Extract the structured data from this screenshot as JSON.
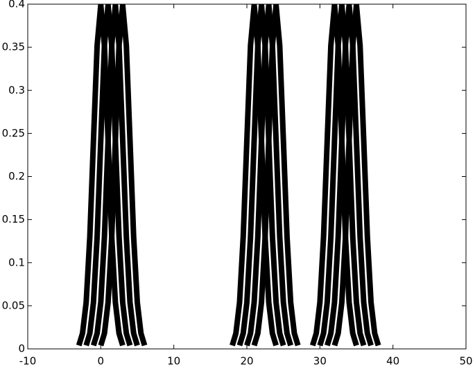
{
  "chart_data": {
    "type": "line",
    "xlim": [
      -10,
      50
    ],
    "xticks": [
      -10,
      0,
      10,
      20,
      30,
      40,
      50
    ],
    "ylim": [
      0,
      0.4
    ],
    "yticks": [
      0,
      0.05,
      0.1,
      0.15,
      0.2,
      0.25,
      0.3,
      0.35,
      0.4
    ],
    "series": [
      {
        "color": "#000000",
        "x": [
          -3,
          -2.5,
          -2,
          -1.5,
          -1,
          -0.5,
          0,
          0.5,
          1,
          1.5,
          2,
          2.5,
          3
        ],
        "values": [
          0.004,
          0.018,
          0.054,
          0.13,
          0.242,
          0.352,
          0.399,
          0.352,
          0.242,
          0.13,
          0.054,
          0.018,
          0.004
        ]
      },
      {
        "color": "#000000",
        "x": [
          -2,
          -1.5,
          -1,
          -0.5,
          0,
          0.5,
          1,
          1.5,
          2,
          2.5,
          3,
          3.5,
          4
        ],
        "values": [
          0.004,
          0.018,
          0.054,
          0.13,
          0.242,
          0.352,
          0.399,
          0.352,
          0.242,
          0.13,
          0.054,
          0.018,
          0.004
        ]
      },
      {
        "color": "#000000",
        "x": [
          -1,
          -0.5,
          0,
          0.5,
          1,
          1.5,
          2,
          2.5,
          3,
          3.5,
          4,
          4.5,
          5
        ],
        "values": [
          0.004,
          0.018,
          0.054,
          0.13,
          0.242,
          0.352,
          0.399,
          0.352,
          0.242,
          0.13,
          0.054,
          0.018,
          0.004
        ]
      },
      {
        "color": "#000000",
        "x": [
          0,
          0.5,
          1,
          1.5,
          2,
          2.5,
          3,
          3.5,
          4,
          4.5,
          5,
          5.5,
          6
        ],
        "values": [
          0.004,
          0.018,
          0.054,
          0.13,
          0.242,
          0.352,
          0.399,
          0.352,
          0.242,
          0.13,
          0.054,
          0.018,
          0.004
        ]
      },
      {
        "color": "#000000",
        "x": [
          18,
          18.5,
          19,
          19.5,
          20,
          20.5,
          21,
          21.5,
          22,
          22.5,
          23,
          23.5,
          24
        ],
        "values": [
          0.004,
          0.018,
          0.054,
          0.13,
          0.242,
          0.352,
          0.399,
          0.352,
          0.242,
          0.13,
          0.054,
          0.018,
          0.004
        ]
      },
      {
        "color": "#000000",
        "x": [
          19,
          19.5,
          20,
          20.5,
          21,
          21.5,
          22,
          22.5,
          23,
          23.5,
          24,
          24.5,
          25
        ],
        "values": [
          0.004,
          0.018,
          0.054,
          0.13,
          0.242,
          0.352,
          0.399,
          0.352,
          0.242,
          0.13,
          0.054,
          0.018,
          0.004
        ]
      },
      {
        "color": "#000000",
        "x": [
          20,
          20.5,
          21,
          21.5,
          22,
          22.5,
          23,
          23.5,
          24,
          24.5,
          25,
          25.5,
          26
        ],
        "values": [
          0.004,
          0.018,
          0.054,
          0.13,
          0.242,
          0.352,
          0.399,
          0.352,
          0.242,
          0.13,
          0.054,
          0.018,
          0.004
        ]
      },
      {
        "color": "#000000",
        "x": [
          21,
          21.5,
          22,
          22.5,
          23,
          23.5,
          24,
          24.5,
          25,
          25.5,
          26,
          26.5,
          27
        ],
        "values": [
          0.004,
          0.018,
          0.054,
          0.13,
          0.242,
          0.352,
          0.399,
          0.352,
          0.242,
          0.13,
          0.054,
          0.018,
          0.004
        ]
      },
      {
        "color": "#000000",
        "x": [
          29,
          29.5,
          30,
          30.5,
          31,
          31.5,
          32,
          32.5,
          33,
          33.5,
          34,
          34.5,
          35
        ],
        "values": [
          0.004,
          0.018,
          0.054,
          0.13,
          0.242,
          0.352,
          0.399,
          0.352,
          0.242,
          0.13,
          0.054,
          0.018,
          0.004
        ]
      },
      {
        "color": "#000000",
        "x": [
          30,
          30.5,
          31,
          31.5,
          32,
          32.5,
          33,
          33.5,
          34,
          34.5,
          35,
          35.5,
          36
        ],
        "values": [
          0.004,
          0.018,
          0.054,
          0.13,
          0.242,
          0.352,
          0.399,
          0.352,
          0.242,
          0.13,
          0.054,
          0.018,
          0.004
        ]
      },
      {
        "color": "#000000",
        "x": [
          31,
          31.5,
          32,
          32.5,
          33,
          33.5,
          34,
          34.5,
          35,
          35.5,
          36,
          36.5,
          37
        ],
        "values": [
          0.004,
          0.018,
          0.054,
          0.13,
          0.242,
          0.352,
          0.399,
          0.352,
          0.242,
          0.13,
          0.054,
          0.018,
          0.004
        ]
      },
      {
        "color": "#000000",
        "x": [
          32,
          32.5,
          33,
          33.5,
          34,
          34.5,
          35,
          35.5,
          36,
          36.5,
          37,
          37.5,
          38
        ],
        "values": [
          0.004,
          0.018,
          0.054,
          0.13,
          0.242,
          0.352,
          0.399,
          0.352,
          0.242,
          0.13,
          0.054,
          0.018,
          0.004
        ]
      }
    ]
  }
}
